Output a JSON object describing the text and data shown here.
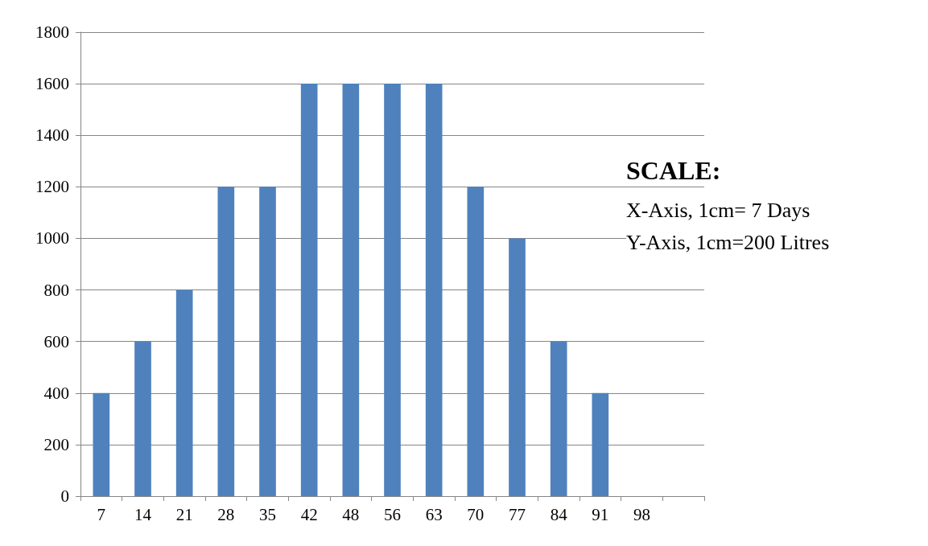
{
  "chart_data": {
    "type": "bar",
    "categories": [
      "7",
      "14",
      "21",
      "28",
      "35",
      "42",
      "48",
      "56",
      "63",
      "70",
      "77",
      "84",
      "91",
      "98",
      null
    ],
    "values": [
      400,
      600,
      800,
      1200,
      1200,
      1600,
      1600,
      1600,
      1600,
      1200,
      1000,
      600,
      400,
      null,
      null
    ],
    "color": "#4f81bd",
    "ylim": [
      0,
      1800
    ],
    "yticks": [
      0,
      200,
      400,
      600,
      800,
      1000,
      1200,
      1400,
      1600,
      1800
    ],
    "grid": "y",
    "annotations": [
      "SCALE:",
      "X-Axis, 1cm= 7 Days",
      "Y-Axis, 1cm=200 Litres"
    ]
  }
}
